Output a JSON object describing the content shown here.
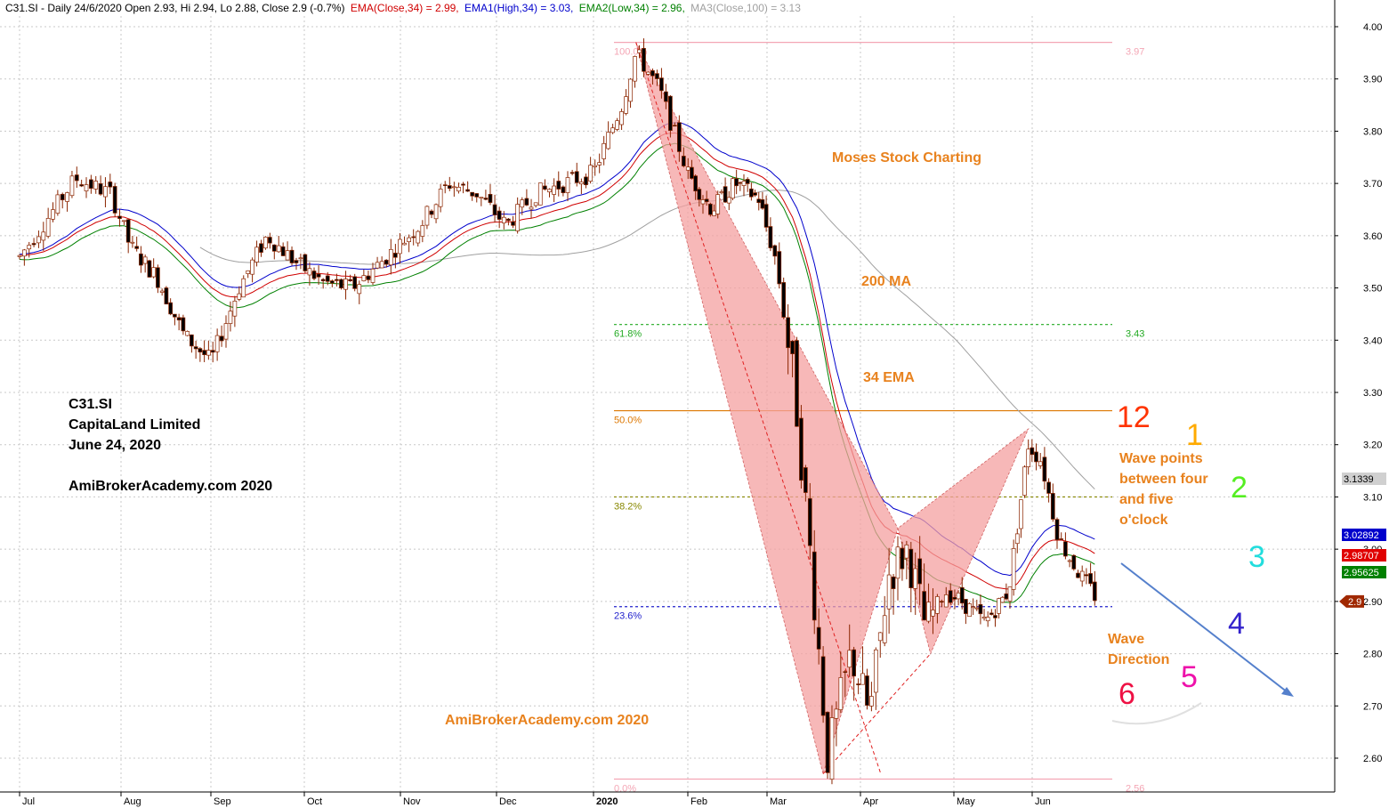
{
  "header": {
    "symbol_info": "C31.SI - Daily 24/6/2020 Open 2.93, Hi 2.94, Lo 2.88, Close 2.9 (-0.7%)",
    "ema_close": "EMA(Close,34) = 2.99,",
    "ema_high": "EMA1(High,34) = 3.03,",
    "ema_low": "EMA2(Low,34) = 2.96,",
    "ma_close": "MA3(Close,100) = 3.13"
  },
  "colors": {
    "ema_close": "#d00000",
    "ema_high": "#0000cc",
    "ema_low": "#008000",
    "ma100": "#a0a0a0",
    "candle_up": "#ffffff",
    "candle_down": "#000000",
    "candle_outline": "#8b2500",
    "harmonic_fill": "#f4a0a0",
    "wave_arrow": "#5580cc",
    "annotation_orange": "#e8821e"
  },
  "annotations": {
    "ticker": "C31.SI",
    "company": "CapitaLand Limited",
    "date": "June 24, 2020",
    "site_top": "AmiBrokerAcademy.com  2020",
    "site_bottom": "AmiBrokerAcademy.com 2020",
    "moses": "Moses Stock Charting",
    "ma200": "200 MA",
    "ema34": "34 EMA",
    "wave_points": [
      "Wave points",
      "between four",
      "and five",
      "o'clock"
    ],
    "wave_direction": [
      "Wave",
      "Direction"
    ]
  },
  "clock": [
    {
      "label": "12",
      "color": "#ff3300"
    },
    {
      "label": "1",
      "color": "#ffaa00"
    },
    {
      "label": "2",
      "color": "#55ee22"
    },
    {
      "label": "3",
      "color": "#22dddd"
    },
    {
      "label": "4",
      "color": "#3322cc"
    },
    {
      "label": "5",
      "color": "#ee11aa"
    },
    {
      "label": "6",
      "color": "#ee1144"
    }
  ],
  "chart_data": {
    "type": "candlestick",
    "x_ticks": [
      "Jul",
      "Aug",
      "Sep",
      "Oct",
      "Nov",
      "Dec",
      "2020",
      "Feb",
      "Mar",
      "Apr",
      "May",
      "Jun"
    ],
    "y_ticks": [
      "2.60",
      "2.70",
      "2.80",
      "2.90",
      "3.00",
      "3.10",
      "3.20",
      "3.30",
      "3.40",
      "3.50",
      "3.60",
      "3.70",
      "3.80",
      "3.90",
      "4.00"
    ],
    "ylim": [
      2.54,
      4.04
    ],
    "grid": true,
    "fibonacci": [
      {
        "level": "100.0%",
        "price": 3.97,
        "price_label": "3.97",
        "color": "#f4a6b5",
        "dashed": false
      },
      {
        "level": "61.8%",
        "price": 3.43,
        "price_label": "3.43",
        "color": "#22aa22",
        "dashed": true
      },
      {
        "level": "50.0%",
        "price": 3.265,
        "price_label": "",
        "color": "#dd7700",
        "dashed": false
      },
      {
        "level": "38.2%",
        "price": 3.1,
        "price_label": "",
        "color": "#888800",
        "dashed": true
      },
      {
        "level": "23.6%",
        "price": 2.89,
        "price_label": "",
        "color": "#2222cc",
        "dashed": true
      },
      {
        "level": "0.0%",
        "price": 2.56,
        "price_label": "2.56",
        "color": "#f4a6b5",
        "dashed": false
      }
    ],
    "price_tags": [
      {
        "value": "3.1339",
        "price": 3.13,
        "bg": "#d0d0d0",
        "fg": "#000000"
      },
      {
        "value": "3.02892",
        "price": 3.029,
        "bg": "#0000cc",
        "fg": "#ffffff"
      },
      {
        "value": "2.98707",
        "price": 2.987,
        "bg": "#e00000",
        "fg": "#ffffff"
      },
      {
        "value": "2.95625",
        "price": 2.956,
        "bg": "#008000",
        "fg": "#ffffff"
      },
      {
        "value": "2.9",
        "price": 2.9,
        "bg": "#a02800",
        "fg": "#ffffff"
      }
    ],
    "harmonic_points": [
      {
        "month_pos": 6.45,
        "price": 3.97
      },
      {
        "month_pos": 8.6,
        "price": 2.57
      },
      {
        "month_pos": 9.4,
        "price": 3.04
      },
      {
        "month_pos": 9.75,
        "price": 2.8
      },
      {
        "month_pos": 10.95,
        "price": 3.23
      }
    ],
    "ohlc_sample_last": {
      "open": 2.93,
      "high": 2.94,
      "low": 2.88,
      "close": 2.9
    }
  }
}
